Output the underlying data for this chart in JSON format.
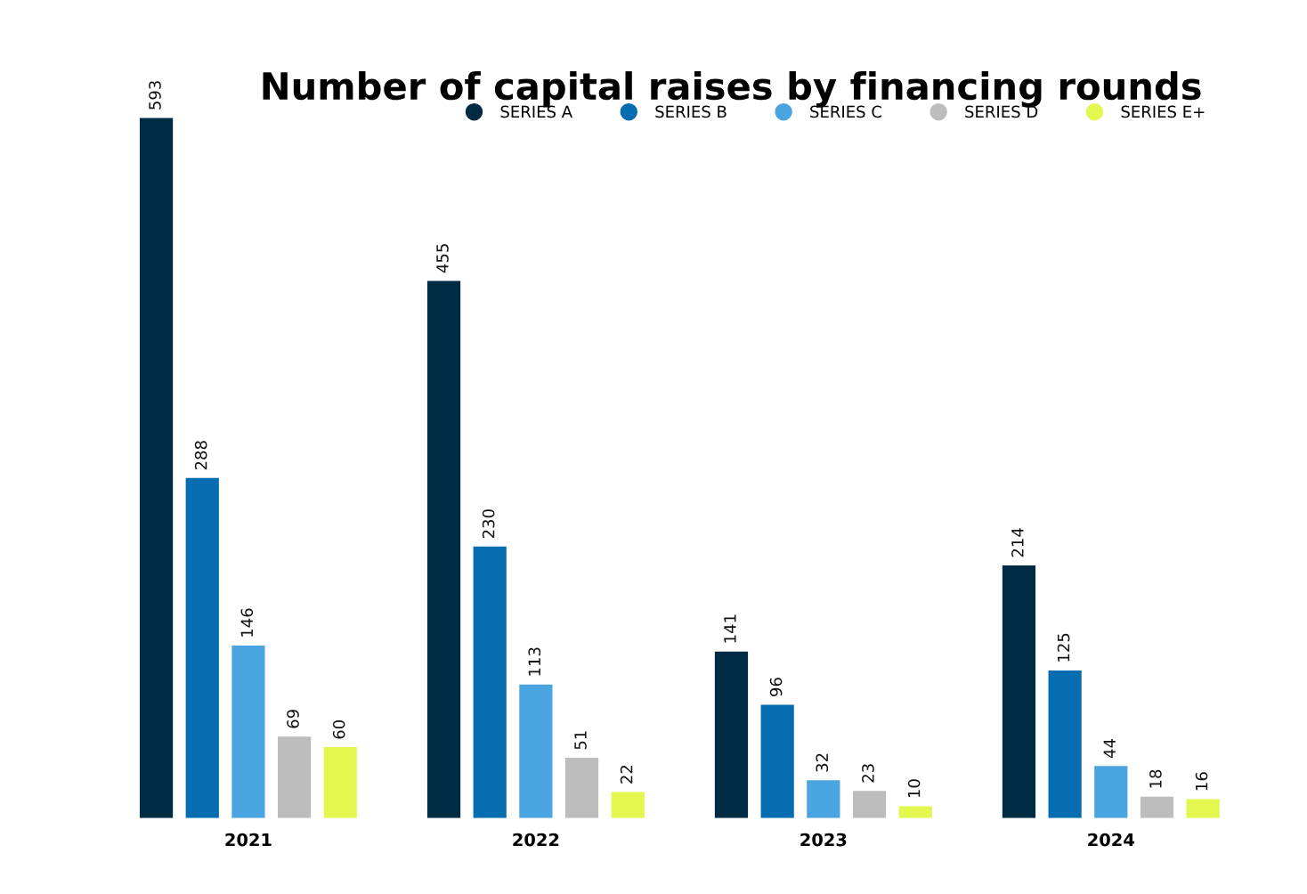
{
  "chart_data": {
    "type": "bar",
    "title": "Number of capital raises by financing rounds",
    "categories": [
      "2021",
      "2022",
      "2023",
      "2024"
    ],
    "series": [
      {
        "name": "SERIES A",
        "color": "#002b45",
        "values": [
          593,
          455,
          141,
          214
        ]
      },
      {
        "name": "SERIES B",
        "color": "#056db0",
        "values": [
          288,
          230,
          96,
          125
        ]
      },
      {
        "name": "SERIES C",
        "color": "#4aa4df",
        "values": [
          146,
          113,
          32,
          44
        ]
      },
      {
        "name": "SERIES D",
        "color": "#bdbdbd",
        "values": [
          69,
          51,
          23,
          18
        ]
      },
      {
        "name": "SERIES E+",
        "color": "#e3f74f",
        "values": [
          60,
          22,
          10,
          16
        ]
      }
    ],
    "data_labels": true,
    "legend": "top right",
    "grid": false,
    "marker": "circle"
  }
}
